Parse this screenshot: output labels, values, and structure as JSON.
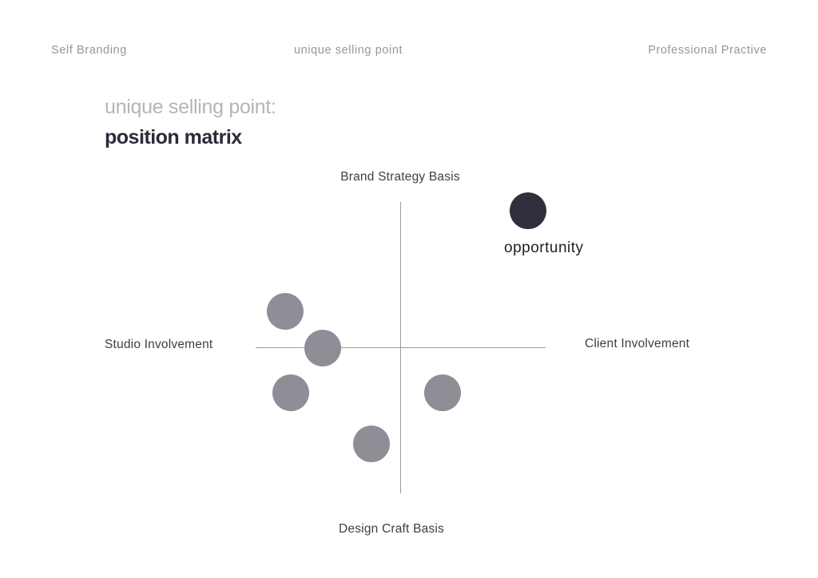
{
  "colors": {
    "background": "#ffffff",
    "header_text": "#97969c",
    "subtitle_text": "#b5b4b8",
    "title_text": "#2d2a39",
    "axis_line": "#9b9aa1",
    "axis_label_text": "#3e3d4a",
    "point_gray": "#8f8d95",
    "point_dark": "#322e3e",
    "opportunity_label_text": "#1f1e27"
  },
  "header": {
    "left": "Self Branding",
    "center": "unique selling point",
    "right": "Professional Practive"
  },
  "title": {
    "subtitle": "unique selling point:",
    "main": "position matrix"
  },
  "matrix": {
    "labels": {
      "top": "Brand Strategy Basis",
      "bottom": "Design Craft Basis",
      "left": "Studio Involvement",
      "right": "Client Involvement"
    },
    "opportunity_label": "opportunity"
  },
  "chart_data": {
    "type": "scatter",
    "title": "unique selling point: position matrix",
    "x_axis": {
      "negative_label": "Studio Involvement",
      "positive_label": "Client Involvement",
      "range": [
        -1,
        1
      ]
    },
    "y_axis": {
      "negative_label": "Design Craft Basis",
      "positive_label": "Brand Strategy Basis",
      "range": [
        -1,
        1
      ]
    },
    "grid": false,
    "legend": "none",
    "points": [
      {
        "label": "opportunity",
        "x": 0.88,
        "y": 0.94,
        "color": "#322e3e"
      },
      {
        "label": "",
        "x": -0.8,
        "y": 0.25,
        "color": "#8f8d95"
      },
      {
        "label": "",
        "x": -0.54,
        "y": 0.0,
        "color": "#8f8d95"
      },
      {
        "label": "",
        "x": -0.76,
        "y": -0.31,
        "color": "#8f8d95"
      },
      {
        "label": "",
        "x": 0.29,
        "y": -0.31,
        "color": "#8f8d95"
      },
      {
        "label": "",
        "x": -0.2,
        "y": -0.66,
        "color": "#8f8d95"
      }
    ]
  }
}
